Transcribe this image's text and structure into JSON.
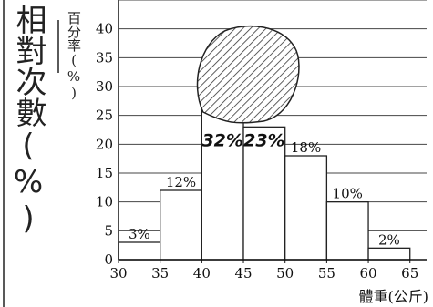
{
  "chart_data": {
    "type": "bar",
    "handwritten_ylabel": "相對次數(%)",
    "ylabel": "百分率(%)",
    "xlabel": "體重(公斤)",
    "x_ticks": [
      "30",
      "35",
      "40",
      "45",
      "50",
      "55",
      "60",
      "65"
    ],
    "y_ticks": [
      "0",
      "5",
      "10",
      "15",
      "20",
      "25",
      "30",
      "35",
      "40"
    ],
    "ylim": [
      0,
      45
    ],
    "xlim": [
      30,
      67
    ],
    "bins": [
      {
        "from": 30,
        "to": 35,
        "value": 3,
        "label": "3%",
        "handwritten": false
      },
      {
        "from": 35,
        "to": 40,
        "value": 12,
        "label": "12%",
        "handwritten": false
      },
      {
        "from": 40,
        "to": 45,
        "value": 32,
        "label": "32%",
        "handwritten": true
      },
      {
        "from": 45,
        "to": 50,
        "value": 23,
        "label": "23%",
        "handwritten": true
      },
      {
        "from": 50,
        "to": 55,
        "value": 18,
        "label": "18%",
        "handwritten": false
      },
      {
        "from": 55,
        "to": 60,
        "value": 10,
        "label": "10%",
        "handwritten": false
      },
      {
        "from": 60,
        "to": 65,
        "value": 2,
        "label": "2%",
        "handwritten": false
      }
    ],
    "grid": true,
    "occluded_region": "hatched blob covering tops of the 40–45 and 45–50 bars"
  }
}
